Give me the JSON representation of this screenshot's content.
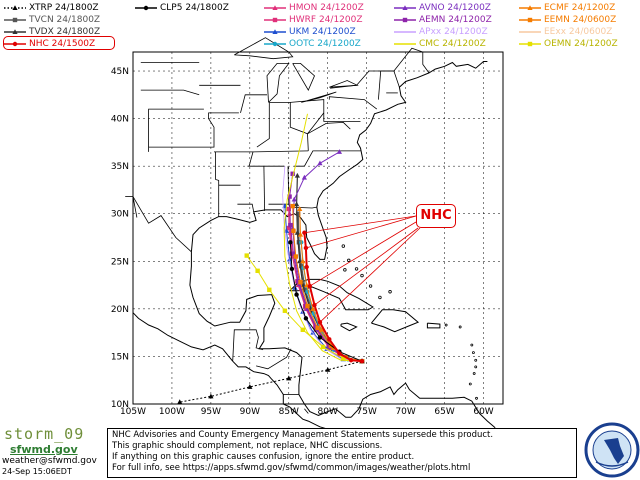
{
  "legend": [
    {
      "label": "XTRP 24/1800Z",
      "color": "#000000",
      "marker": "triangle",
      "dash": "dot"
    },
    {
      "label": "TVCN 24/1800Z",
      "color": "#555555",
      "marker": "square",
      "dash": "solid"
    },
    {
      "label": "TVDX 24/1800Z",
      "color": "#333333",
      "marker": "triangle",
      "dash": "solid"
    },
    {
      "label": "NHC 24/1500Z",
      "color": "#e00000",
      "marker": "circle",
      "dash": "solid"
    },
    {
      "label": "CLP5 24/1800Z",
      "color": "#000000",
      "marker": "circle",
      "dash": "solid"
    },
    {
      "label": "HMON 24/1200Z",
      "color": "#e0307a",
      "marker": "triangle",
      "dash": "solid"
    },
    {
      "label": "HWRF 24/1200Z",
      "color": "#e0307a",
      "marker": "square",
      "dash": "solid"
    },
    {
      "label": "UKM 24/1200Z",
      "color": "#1f4fcf",
      "marker": "triangle",
      "dash": "solid"
    },
    {
      "label": "OOTC 24/1200Z",
      "color": "#19a7c9",
      "marker": "circle",
      "dash": "solid"
    },
    {
      "label": "AVNO 24/1200Z",
      "color": "#7b2fbf",
      "marker": "triangle",
      "dash": "solid"
    },
    {
      "label": "AEMN 24/1200Z",
      "color": "#8e24aa",
      "marker": "square",
      "dash": "solid"
    },
    {
      "label": "APxx 24/1200Z",
      "color": "#c8a0ff",
      "marker": "none",
      "dash": "solid"
    },
    {
      "label": "CMC 24/1200Z",
      "color": "#e5e000",
      "marker": "none",
      "dash": "solid"
    },
    {
      "label": "ECMF 24/1200Z",
      "color": "#f57c00",
      "marker": "triangle",
      "dash": "solid"
    },
    {
      "label": "EEMN 24/0600Z",
      "color": "#f57c00",
      "marker": "square",
      "dash": "solid"
    },
    {
      "label": "EExx 24/0600Z",
      "color": "#f7c9a0",
      "marker": "none",
      "dash": "solid"
    },
    {
      "label": "OEMN 24/1200Z",
      "color": "#e5e000",
      "marker": "square",
      "dash": "solid"
    }
  ],
  "map": {
    "lon_labels": [
      "105W",
      "100W",
      "95W",
      "90W",
      "85W",
      "80W",
      "75W",
      "70W",
      "65W",
      "60W"
    ],
    "lat_labels": [
      "10N",
      "15N",
      "20N",
      "25N",
      "30N",
      "35N",
      "40N",
      "45N"
    ],
    "callout": "NHC"
  },
  "tracks": [
    {
      "name": "NHC",
      "color": "#e00000",
      "width": 2,
      "marker": "circle",
      "points": [
        [
          -75.6,
          14.5
        ],
        [
          -77.0,
          14.6
        ],
        [
          -78.5,
          15.3
        ],
        [
          -79.8,
          16.8
        ],
        [
          -81.0,
          18.6
        ],
        [
          -81.7,
          20.4
        ],
        [
          -82.3,
          22.4
        ],
        [
          -82.7,
          24.4
        ],
        [
          -82.8,
          26.4
        ],
        [
          -83.0,
          28.0
        ]
      ]
    },
    {
      "name": "TVCN",
      "color": "#555555",
      "width": 1.5,
      "marker": "square",
      "points": [
        [
          -75.6,
          14.5
        ],
        [
          -77.5,
          14.8
        ],
        [
          -79.3,
          15.8
        ],
        [
          -80.8,
          17.6
        ],
        [
          -82.0,
          19.7
        ],
        [
          -82.9,
          22.0
        ],
        [
          -83.4,
          24.5
        ],
        [
          -83.7,
          27.0
        ],
        [
          -83.8,
          30.0
        ]
      ]
    },
    {
      "name": "TVDX",
      "color": "#333333",
      "width": 1.2,
      "marker": "triangle",
      "points": [
        [
          -75.6,
          14.5
        ],
        [
          -77.6,
          14.9
        ],
        [
          -79.5,
          16.0
        ],
        [
          -81.0,
          17.9
        ],
        [
          -82.3,
          20.1
        ],
        [
          -83.2,
          22.5
        ],
        [
          -83.6,
          25.0
        ],
        [
          -83.9,
          28.0
        ],
        [
          -84.0,
          31.0
        ],
        [
          -83.9,
          34.0
        ]
      ]
    },
    {
      "name": "HMON",
      "color": "#e0307a",
      "width": 1,
      "marker": "triangle",
      "points": [
        [
          -75.6,
          14.5
        ],
        [
          -77.8,
          14.8
        ],
        [
          -79.8,
          15.9
        ],
        [
          -81.5,
          17.8
        ],
        [
          -82.8,
          20.0
        ],
        [
          -83.8,
          22.5
        ],
        [
          -84.5,
          25.5
        ],
        [
          -84.8,
          28.0
        ],
        [
          -84.9,
          30.0
        ]
      ]
    },
    {
      "name": "HWRF",
      "color": "#e0307a",
      "width": 1,
      "marker": "square",
      "points": [
        [
          -75.6,
          14.5
        ],
        [
          -77.9,
          14.9
        ],
        [
          -79.9,
          16.1
        ],
        [
          -81.6,
          18.1
        ],
        [
          -82.9,
          20.3
        ],
        [
          -83.9,
          22.9
        ],
        [
          -84.6,
          25.8
        ],
        [
          -85.0,
          28.5
        ],
        [
          -85.0,
          30.5
        ]
      ]
    },
    {
      "name": "UKM",
      "color": "#1f4fcf",
      "width": 1,
      "marker": "triangle",
      "points": [
        [
          -75.6,
          14.5
        ],
        [
          -78.0,
          14.7
        ],
        [
          -80.1,
          15.8
        ],
        [
          -81.9,
          17.5
        ],
        [
          -83.2,
          19.7
        ],
        [
          -84.2,
          22.2
        ],
        [
          -84.9,
          25.2
        ],
        [
          -85.3,
          28.2
        ],
        [
          -85.5,
          30.8
        ]
      ]
    },
    {
      "name": "OOTC",
      "color": "#19a7c9",
      "width": 1,
      "marker": "circle",
      "points": [
        [
          -75.6,
          14.5
        ],
        [
          -77.4,
          14.7
        ],
        [
          -79.2,
          15.7
        ],
        [
          -80.7,
          17.4
        ],
        [
          -81.8,
          19.5
        ],
        [
          -82.6,
          21.8
        ],
        [
          -83.1,
          24.3
        ],
        [
          -83.4,
          27.0
        ]
      ]
    },
    {
      "name": "AVNO",
      "color": "#7b2fbf",
      "width": 1,
      "marker": "triangle",
      "points": [
        [
          -75.6,
          14.5
        ],
        [
          -77.7,
          14.8
        ],
        [
          -79.6,
          15.9
        ],
        [
          -81.3,
          17.8
        ],
        [
          -82.6,
          20.0
        ],
        [
          -83.6,
          22.6
        ],
        [
          -84.2,
          25.5
        ],
        [
          -84.5,
          28.5
        ],
        [
          -84.3,
          31.5
        ],
        [
          -83.0,
          33.8
        ],
        [
          -81.0,
          35.3
        ],
        [
          -78.5,
          36.5
        ]
      ]
    },
    {
      "name": "AEMN",
      "color": "#8e24aa",
      "width": 1,
      "marker": "square",
      "points": [
        [
          -75.6,
          14.5
        ],
        [
          -77.8,
          14.9
        ],
        [
          -79.8,
          16.0
        ],
        [
          -81.5,
          18.0
        ],
        [
          -82.8,
          20.3
        ],
        [
          -83.8,
          22.9
        ],
        [
          -84.4,
          25.8
        ],
        [
          -84.8,
          28.8
        ],
        [
          -84.9,
          31.8
        ],
        [
          -84.5,
          34.2
        ]
      ]
    },
    {
      "name": "ECMF",
      "color": "#f57c00",
      "width": 1,
      "marker": "triangle",
      "points": [
        [
          -75.6,
          14.5
        ],
        [
          -77.5,
          14.8
        ],
        [
          -79.3,
          15.9
        ],
        [
          -80.8,
          17.8
        ],
        [
          -81.9,
          20.0
        ],
        [
          -82.7,
          22.5
        ],
        [
          -83.2,
          25.0
        ],
        [
          -83.5,
          27.8
        ],
        [
          -83.6,
          30.5
        ]
      ]
    },
    {
      "name": "EEMN",
      "color": "#f57c00",
      "width": 1,
      "marker": "square",
      "points": [
        [
          -75.6,
          14.5
        ],
        [
          -77.7,
          14.9
        ],
        [
          -79.6,
          16.1
        ],
        [
          -81.3,
          18.0
        ],
        [
          -82.6,
          20.3
        ],
        [
          -83.5,
          22.8
        ],
        [
          -84.1,
          25.5
        ],
        [
          -84.4,
          28.2
        ],
        [
          -84.5,
          30.8
        ]
      ]
    },
    {
      "name": "APxx",
      "color": "#c8a0ff",
      "width": 0.8,
      "marker": "none",
      "points": [
        [
          -75.6,
          14.5
        ],
        [
          -78.2,
          14.7
        ],
        [
          -80.5,
          15.9
        ],
        [
          -82.3,
          17.9
        ],
        [
          -83.6,
          20.4
        ],
        [
          -84.5,
          23.2
        ],
        [
          -85.2,
          26.2
        ],
        [
          -85.6,
          29.0
        ],
        [
          -85.8,
          32.0
        ],
        [
          -85.5,
          35.0
        ]
      ]
    },
    {
      "name": "CMC",
      "color": "#e5e000",
      "width": 1,
      "marker": "none",
      "points": [
        [
          -75.6,
          14.5
        ],
        [
          -78.3,
          14.6
        ],
        [
          -80.7,
          15.6
        ],
        [
          -82.6,
          17.5
        ],
        [
          -84.0,
          19.8
        ],
        [
          -84.9,
          22.6
        ],
        [
          -85.5,
          25.5
        ],
        [
          -85.6,
          28.5
        ],
        [
          -85.2,
          31.5
        ],
        [
          -84.3,
          34.5
        ],
        [
          -83.4,
          37.5
        ],
        [
          -82.6,
          40.5
        ]
      ]
    },
    {
      "name": "OEMN",
      "color": "#e5e000",
      "width": 1,
      "marker": "square",
      "points": [
        [
          -75.6,
          14.5
        ],
        [
          -78.0,
          14.8
        ],
        [
          -80.6,
          16.0
        ],
        [
          -83.2,
          17.8
        ],
        [
          -85.5,
          19.8
        ],
        [
          -87.5,
          22.0
        ],
        [
          -89.0,
          24.0
        ],
        [
          -90.4,
          25.6
        ]
      ]
    },
    {
      "name": "XTRP",
      "color": "#000000",
      "width": 1,
      "marker": "triangle",
      "dash": "2,2",
      "points": [
        [
          -75.6,
          14.5
        ],
        [
          -80.0,
          13.6
        ],
        [
          -85.0,
          12.7
        ],
        [
          -90.0,
          11.8
        ],
        [
          -95.0,
          10.8
        ],
        [
          -99.0,
          10.2
        ]
      ]
    },
    {
      "name": "CLP5",
      "color": "#000000",
      "width": 1,
      "marker": "circle",
      "points": [
        [
          -75.6,
          14.5
        ],
        [
          -78.5,
          15.5
        ],
        [
          -81.0,
          17.0
        ],
        [
          -82.8,
          19.0
        ],
        [
          -84.0,
          21.5
        ],
        [
          -84.6,
          24.2
        ],
        [
          -84.8,
          27.0
        ]
      ]
    }
  ],
  "footer": {
    "brand": "storm_09",
    "site": "sfwmd.gov",
    "email": "weather@sfwmd.gov",
    "timestamp": "24-Sep 15:06EDT",
    "disclaimer": [
      "NHC Advisories and County Emergency Management Statements supersede this product.",
      "This graphic should complement, not replace, NHC discussions.",
      "If anything on this graphic causes confusion, ignore the entire product.",
      "For full info, see   https://apps.sfwmd.gov/sfwmd/common/images/weather/plots.html"
    ]
  }
}
